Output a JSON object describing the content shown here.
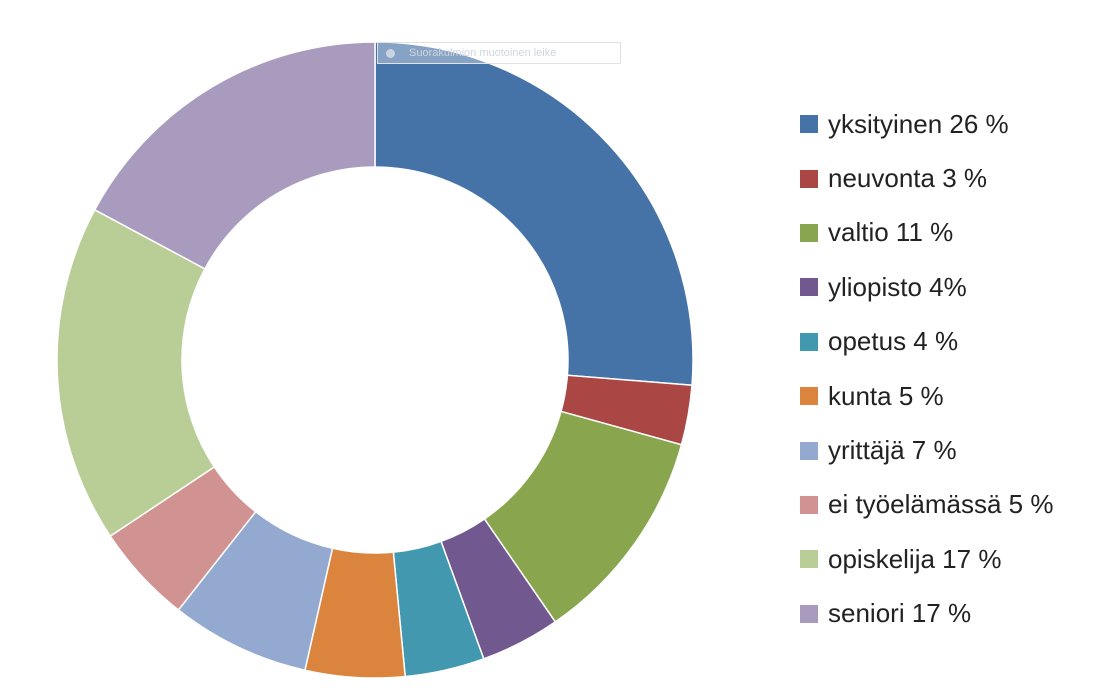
{
  "chart_data": {
    "type": "pie",
    "variant": "donut",
    "title": "",
    "categories": [
      "yksityinen",
      "neuvonta",
      "valtio",
      "yliopisto",
      "opetus",
      "kunta",
      "yrittäjä",
      "ei työelämässä",
      "opiskelija",
      "seniori"
    ],
    "values": [
      26,
      3,
      11,
      4,
      4,
      5,
      7,
      5,
      17,
      17
    ],
    "colors": [
      "#4572A7",
      "#AA4643",
      "#89A54E",
      "#71588F",
      "#4198AF",
      "#DB843D",
      "#93A9CF",
      "#D19392",
      "#B9CD96",
      "#A99BBD"
    ],
    "legend": {
      "placement": "right",
      "labels": [
        "yksityinen 26 %",
        "neuvonta 3 %",
        "valtio 11 %",
        "yliopisto 4%",
        "opetus 4 %",
        "kunta 5 %",
        "yrittäjä 7 %",
        "ei työelämässä 5 %",
        "opiskelija 17 %",
        "seniori 17 %"
      ]
    }
  },
  "overlay": {
    "tooltip_text": "Suorakulmion muotoinen leike",
    "tooltip_icon": "scissors-icon"
  }
}
